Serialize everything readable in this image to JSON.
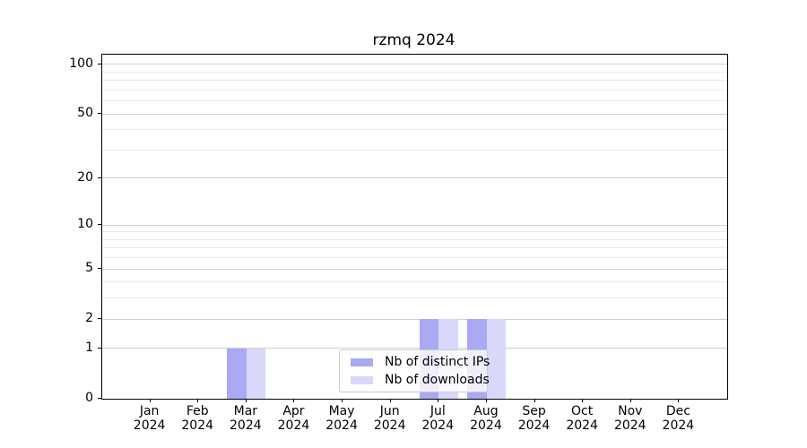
{
  "chart_data": {
    "type": "bar",
    "title": "rzmq 2024",
    "categories": [
      "Jan",
      "Feb",
      "Mar",
      "Apr",
      "May",
      "Jun",
      "Jul",
      "Aug",
      "Sep",
      "Oct",
      "Nov",
      "Dec"
    ],
    "x_year_label": "2024",
    "series": [
      {
        "name": "Nb of distinct IPs",
        "color": "#a9a9f4",
        "values": [
          0,
          0,
          1,
          0,
          0,
          0,
          2,
          2,
          0,
          0,
          0,
          0
        ]
      },
      {
        "name": "Nb of downloads",
        "color": "#d9d8fa",
        "values": [
          0,
          0,
          1,
          0,
          0,
          0,
          2,
          2,
          0,
          0,
          0,
          0
        ]
      }
    ],
    "y_scale": "log1p",
    "ylim": [
      0,
      114.7
    ],
    "y_ticks": [
      0,
      1,
      2,
      5,
      10,
      20,
      50,
      100
    ],
    "y_minor_ticks": [
      3,
      4,
      6,
      7,
      8,
      9,
      30,
      40,
      60,
      70,
      80,
      90
    ],
    "grid": true,
    "legend": {
      "entries": [
        "Nb of distinct IPs",
        "Nb of downloads"
      ],
      "position": "lower-center"
    }
  },
  "colors": {
    "axis": "#000000",
    "grid_major": "#d0d0d0",
    "grid_minor": "#e9e9e9",
    "background": "#ffffff",
    "legend_border": "#cccccc",
    "text": "#000000"
  }
}
